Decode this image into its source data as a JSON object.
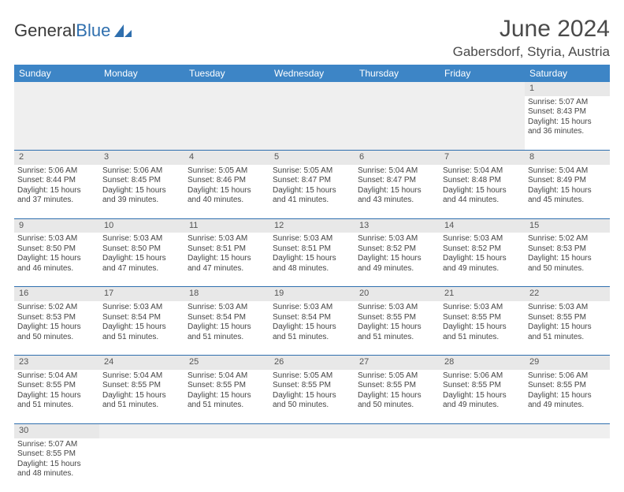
{
  "brand": {
    "name_part1": "General",
    "name_part2": "Blue"
  },
  "title": {
    "month": "June 2024",
    "location": "Gabersdorf, Styria, Austria"
  },
  "colors": {
    "header_bg": "#3d85c6",
    "rule": "#2f6fae",
    "daynum_bg": "#e8e8e8"
  },
  "day_headers": [
    "Sunday",
    "Monday",
    "Tuesday",
    "Wednesday",
    "Thursday",
    "Friday",
    "Saturday"
  ],
  "weeks": [
    [
      null,
      null,
      null,
      null,
      null,
      null,
      {
        "n": "1",
        "sr": "5:07 AM",
        "ss": "8:43 PM",
        "dl": "15 hours and 36 minutes."
      }
    ],
    [
      {
        "n": "2",
        "sr": "5:06 AM",
        "ss": "8:44 PM",
        "dl": "15 hours and 37 minutes."
      },
      {
        "n": "3",
        "sr": "5:06 AM",
        "ss": "8:45 PM",
        "dl": "15 hours and 39 minutes."
      },
      {
        "n": "4",
        "sr": "5:05 AM",
        "ss": "8:46 PM",
        "dl": "15 hours and 40 minutes."
      },
      {
        "n": "5",
        "sr": "5:05 AM",
        "ss": "8:47 PM",
        "dl": "15 hours and 41 minutes."
      },
      {
        "n": "6",
        "sr": "5:04 AM",
        "ss": "8:47 PM",
        "dl": "15 hours and 43 minutes."
      },
      {
        "n": "7",
        "sr": "5:04 AM",
        "ss": "8:48 PM",
        "dl": "15 hours and 44 minutes."
      },
      {
        "n": "8",
        "sr": "5:04 AM",
        "ss": "8:49 PM",
        "dl": "15 hours and 45 minutes."
      }
    ],
    [
      {
        "n": "9",
        "sr": "5:03 AM",
        "ss": "8:50 PM",
        "dl": "15 hours and 46 minutes."
      },
      {
        "n": "10",
        "sr": "5:03 AM",
        "ss": "8:50 PM",
        "dl": "15 hours and 47 minutes."
      },
      {
        "n": "11",
        "sr": "5:03 AM",
        "ss": "8:51 PM",
        "dl": "15 hours and 47 minutes."
      },
      {
        "n": "12",
        "sr": "5:03 AM",
        "ss": "8:51 PM",
        "dl": "15 hours and 48 minutes."
      },
      {
        "n": "13",
        "sr": "5:03 AM",
        "ss": "8:52 PM",
        "dl": "15 hours and 49 minutes."
      },
      {
        "n": "14",
        "sr": "5:03 AM",
        "ss": "8:52 PM",
        "dl": "15 hours and 49 minutes."
      },
      {
        "n": "15",
        "sr": "5:02 AM",
        "ss": "8:53 PM",
        "dl": "15 hours and 50 minutes."
      }
    ],
    [
      {
        "n": "16",
        "sr": "5:02 AM",
        "ss": "8:53 PM",
        "dl": "15 hours and 50 minutes."
      },
      {
        "n": "17",
        "sr": "5:03 AM",
        "ss": "8:54 PM",
        "dl": "15 hours and 51 minutes."
      },
      {
        "n": "18",
        "sr": "5:03 AM",
        "ss": "8:54 PM",
        "dl": "15 hours and 51 minutes."
      },
      {
        "n": "19",
        "sr": "5:03 AM",
        "ss": "8:54 PM",
        "dl": "15 hours and 51 minutes."
      },
      {
        "n": "20",
        "sr": "5:03 AM",
        "ss": "8:55 PM",
        "dl": "15 hours and 51 minutes."
      },
      {
        "n": "21",
        "sr": "5:03 AM",
        "ss": "8:55 PM",
        "dl": "15 hours and 51 minutes."
      },
      {
        "n": "22",
        "sr": "5:03 AM",
        "ss": "8:55 PM",
        "dl": "15 hours and 51 minutes."
      }
    ],
    [
      {
        "n": "23",
        "sr": "5:04 AM",
        "ss": "8:55 PM",
        "dl": "15 hours and 51 minutes."
      },
      {
        "n": "24",
        "sr": "5:04 AM",
        "ss": "8:55 PM",
        "dl": "15 hours and 51 minutes."
      },
      {
        "n": "25",
        "sr": "5:04 AM",
        "ss": "8:55 PM",
        "dl": "15 hours and 51 minutes."
      },
      {
        "n": "26",
        "sr": "5:05 AM",
        "ss": "8:55 PM",
        "dl": "15 hours and 50 minutes."
      },
      {
        "n": "27",
        "sr": "5:05 AM",
        "ss": "8:55 PM",
        "dl": "15 hours and 50 minutes."
      },
      {
        "n": "28",
        "sr": "5:06 AM",
        "ss": "8:55 PM",
        "dl": "15 hours and 49 minutes."
      },
      {
        "n": "29",
        "sr": "5:06 AM",
        "ss": "8:55 PM",
        "dl": "15 hours and 49 minutes."
      }
    ],
    [
      {
        "n": "30",
        "sr": "5:07 AM",
        "ss": "8:55 PM",
        "dl": "15 hours and 48 minutes."
      },
      null,
      null,
      null,
      null,
      null,
      null
    ]
  ],
  "labels": {
    "sunrise": "Sunrise:",
    "sunset": "Sunset:",
    "daylight": "Daylight:"
  }
}
